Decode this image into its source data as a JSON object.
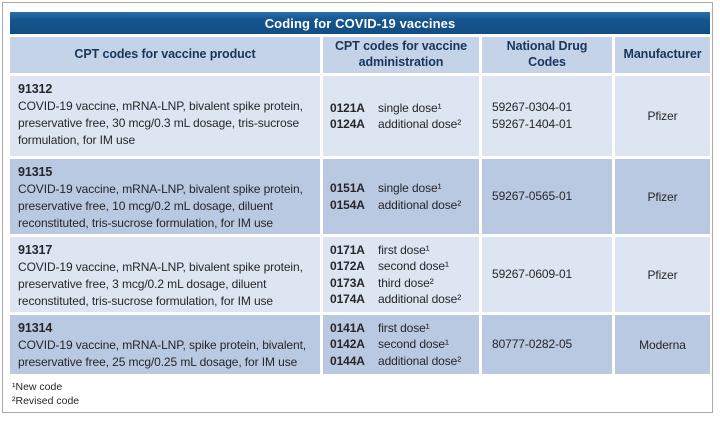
{
  "title": "Coding for COVID-19 vaccines",
  "columns": {
    "product": "CPT codes for vaccine product",
    "administration": "CPT codes for vaccine administration",
    "ndc": "National Drug Codes",
    "manufacturer": "Manufacturer"
  },
  "rows": [
    {
      "cpt": "91312",
      "description": "COVID-19 vaccine, mRNA-LNP, bivalent spike protein, preservative free, 30 mcg/0.3 mL dosage, tris-sucrose formulation, for IM use",
      "admin": [
        {
          "code": "0121A",
          "label": "single dose¹"
        },
        {
          "code": "0124A",
          "label": "additional dose²"
        }
      ],
      "ndc": [
        "59267-0304-01",
        "59267-1404-01"
      ],
      "manufacturer": "Pfizer"
    },
    {
      "cpt": "91315",
      "description": "COVID-19 vaccine, mRNA-LNP, bivalent spike protein, preservative free, 10 mcg/0.2 mL dosage, diluent reconstituted, tris-sucrose formulation, for IM use",
      "admin": [
        {
          "code": "0151A",
          "label": "single dose¹"
        },
        {
          "code": "0154A",
          "label": "additional dose²"
        }
      ],
      "ndc": [
        "59267-0565-01"
      ],
      "manufacturer": "Pfizer"
    },
    {
      "cpt": "91317",
      "description": "COVID-19 vaccine, mRNA-LNP, bivalent spike protein, preservative free, 3 mcg/0.2 mL dosage, diluent reconstituted, tris-sucrose formulation, for IM use",
      "admin": [
        {
          "code": "0171A",
          "label": "first dose¹"
        },
        {
          "code": "0172A",
          "label": "second dose¹"
        },
        {
          "code": "0173A",
          "label": "third dose²"
        },
        {
          "code": "0174A",
          "label": "additional dose²"
        }
      ],
      "ndc": [
        "59267-0609-01"
      ],
      "manufacturer": "Pfizer"
    },
    {
      "cpt": "91314",
      "description": "COVID-19 vaccine, mRNA-LNP, spike protein, bivalent, preservative free, 25 mcg/0.25 mL dosage, for IM use",
      "admin": [
        {
          "code": "0141A",
          "label": "first dose¹"
        },
        {
          "code": "0142A",
          "label": "second dose¹"
        },
        {
          "code": "0144A",
          "label": "additional dose²"
        }
      ],
      "ndc": [
        "80777-0282-05"
      ],
      "manufacturer": "Moderna"
    }
  ],
  "footnotes": [
    "¹New code",
    "²Revised code"
  ],
  "colors": {
    "title_bar": "#16568f",
    "header_bg": "#c4d3e8",
    "header_text": "#17365d",
    "row_light": "#dce5f1",
    "row_dark": "#b9c9e2",
    "body_text": "#26262b",
    "frame_border": "#a9a9a9"
  }
}
